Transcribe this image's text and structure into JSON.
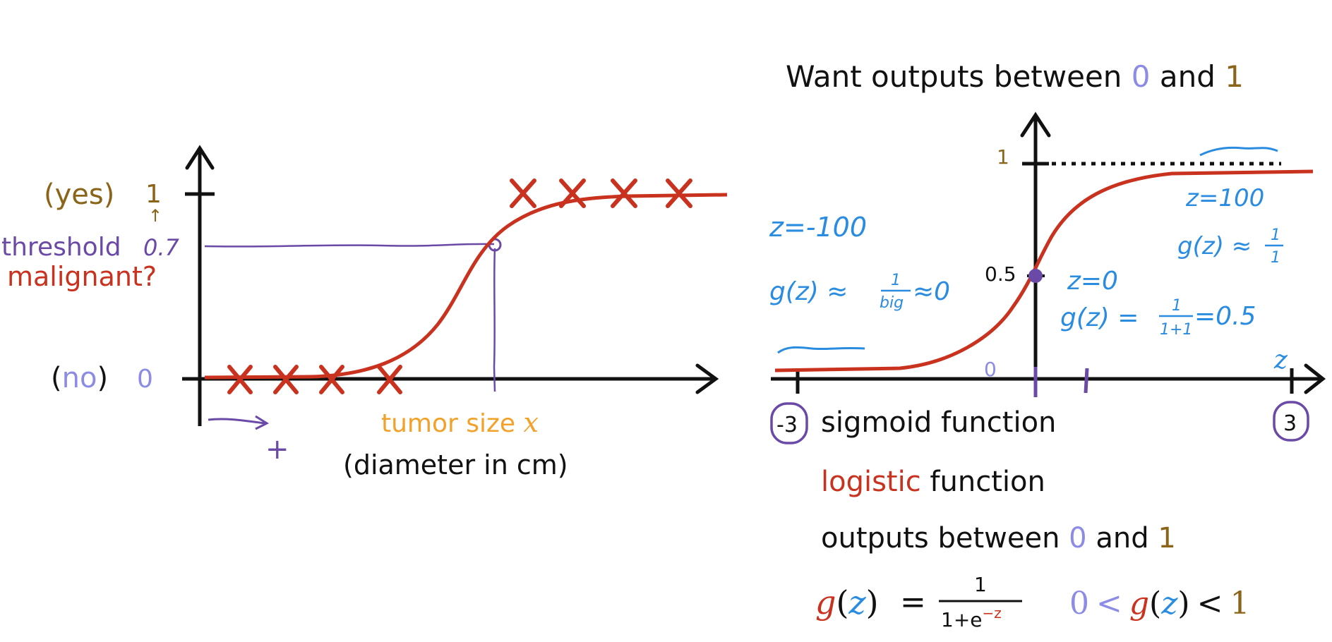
{
  "colors": {
    "black": "#111111",
    "red": "#c8321e",
    "purple": "#6a4aa6",
    "lavender": "#8c8ce6",
    "brown": "#8a6418",
    "orange": "#f2a12a",
    "blue": "#2a8ce0"
  },
  "left_plot": {
    "y_yes_label": "(yes)",
    "y_one": "1",
    "y_one_arrow": "↑",
    "threshold_label": "threshold",
    "threshold_value": "0.7",
    "malignant_label": "malignant?",
    "y_no_open": "(",
    "y_no_word": "no",
    "y_no_close": ")",
    "y_zero": "0",
    "x_label_word": "tumor size ",
    "x_label_var": "x",
    "x_sublabel": "(diameter in cm)",
    "plus_sign": "+"
  },
  "right_plot": {
    "heading_prefix": "Want outputs between ",
    "heading_zero": "0",
    "heading_and": " and ",
    "heading_one": "1",
    "y_tick_one": "1",
    "y_tick_half": "0.5",
    "x_tick_zero": "0",
    "x_axis_var": "z",
    "tick_neg3": "-3",
    "tick_pos3": "3",
    "note_z_neg": "z=-100",
    "note_g_neg_prefix": "g(z) ≈",
    "note_g_neg_num": "1",
    "note_g_neg_den": "big",
    "note_g_neg_suffix": "≈0",
    "note_z_pos": "z=100",
    "note_g_pos_prefix": "g(z) ≈",
    "note_g_pos_num": "1",
    "note_g_pos_den": "1",
    "note_z_zero": "z=0",
    "note_g_zero_prefix": "g(z) =",
    "note_g_zero_num": "1",
    "note_g_zero_den": "1+1",
    "note_g_zero_suffix": "=0.5"
  },
  "text_block": {
    "line1": "sigmoid function",
    "line2_red": "logistic",
    "line2_rest": " function",
    "line3_prefix": "outputs between ",
    "line3_zero": "0",
    "line3_and": " and ",
    "line3_one": "1"
  },
  "formula": {
    "g": "g",
    "z": "z",
    "open_paren": "(",
    "close_paren": ")",
    "equals": "=",
    "numerator": "1",
    "denominator_base": "1+e",
    "denominator_exp": "−z",
    "bound_zero": "0",
    "less_than": "<",
    "bound_one": "1"
  },
  "chart_data": [
    {
      "type": "scatter",
      "xlabel": "tumor size x (diameter in cm)",
      "ylabel": "malignant?",
      "yticks": [
        "0",
        "0.7",
        "1"
      ],
      "threshold_y": 0.7,
      "points": [
        {
          "label": "no",
          "y": 0,
          "count": 4
        },
        {
          "label": "yes",
          "y": 1,
          "count": 4
        }
      ],
      "curve": "sigmoid"
    },
    {
      "type": "line",
      "title": "Want outputs between 0 and 1",
      "xlabel": "z",
      "yticks": [
        "0.5",
        "1"
      ],
      "xticks": [
        "-3",
        "0",
        "3"
      ],
      "highlighted_point": {
        "x": 0,
        "y": 0.5
      },
      "asymptote_y": 1,
      "curve": "sigmoid"
    }
  ]
}
